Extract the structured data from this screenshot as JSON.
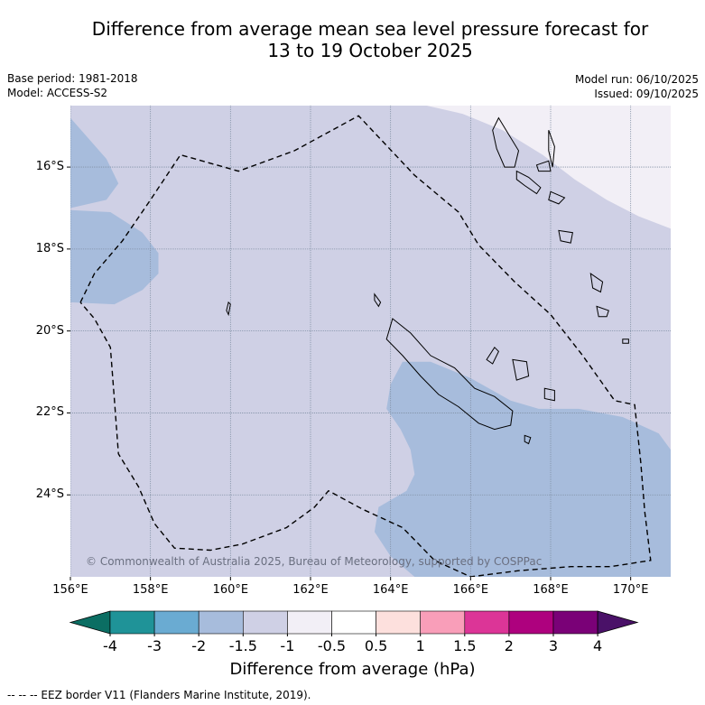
{
  "title": {
    "line1": "Difference from average mean sea level pressure forecast for",
    "line2": "13 to 19 October 2025"
  },
  "meta": {
    "base_period": "Base period: 1981-2018",
    "model": "Model: ACCESS-S2",
    "model_run": "Model run: 06/10/2025",
    "issued": "Issued: 09/10/2025"
  },
  "map": {
    "extent": {
      "lon_min": 156,
      "lon_max": 171,
      "lat_min": -26.0,
      "lat_max": -14.5
    },
    "lat_labels": [
      {
        "lat": -16,
        "label": "16°S"
      },
      {
        "lat": -18,
        "label": "18°S"
      },
      {
        "lat": -20,
        "label": "20°S"
      },
      {
        "lat": -22,
        "label": "22°S"
      },
      {
        "lat": -24,
        "label": "24°S"
      }
    ],
    "lon_labels": [
      {
        "lon": 156,
        "label": "156°E"
      },
      {
        "lon": 158,
        "label": "158°E"
      },
      {
        "lon": 160,
        "label": "160°E"
      },
      {
        "lon": 162,
        "label": "162°E"
      },
      {
        "lon": 164,
        "label": "164°E"
      },
      {
        "lon": 166,
        "label": "166°E"
      },
      {
        "lon": 168,
        "label": "168°E"
      },
      {
        "lon": 170,
        "label": "170°E"
      }
    ],
    "copyright": "© Commonwealth of Australia 2025, Bureau of Meteorology, supported by COSPPac",
    "base_class": "-1.5 to -1",
    "regions": [
      {
        "name": "west-low",
        "class": "-2 to -1.5",
        "color": "#a7bcdc",
        "lonlat": [
          [
            156,
            -14.8
          ],
          [
            156.9,
            -15.8
          ],
          [
            157.2,
            -16.4
          ],
          [
            156.9,
            -16.8
          ],
          [
            156,
            -17.0
          ],
          [
            156,
            -17.05
          ],
          [
            157.0,
            -17.1
          ],
          [
            157.8,
            -17.6
          ],
          [
            158.2,
            -18.1
          ],
          [
            158.2,
            -18.6
          ],
          [
            157.8,
            -19.0
          ],
          [
            157.1,
            -19.35
          ],
          [
            156,
            -19.3
          ],
          [
            156,
            -14.8
          ]
        ]
      },
      {
        "name": "southeast-low",
        "class": "-2 to -1.5",
        "color": "#a7bcdc",
        "lonlat": [
          [
            171,
            -22.9
          ],
          [
            170.7,
            -22.5
          ],
          [
            169.8,
            -22.1
          ],
          [
            168.7,
            -21.9
          ],
          [
            167.7,
            -21.9
          ],
          [
            167.0,
            -21.7
          ],
          [
            166.0,
            -21.15
          ],
          [
            165.0,
            -20.75
          ],
          [
            164.3,
            -20.75
          ],
          [
            164.0,
            -21.3
          ],
          [
            163.9,
            -21.9
          ],
          [
            164.25,
            -22.4
          ],
          [
            164.5,
            -22.9
          ],
          [
            164.6,
            -23.5
          ],
          [
            164.4,
            -23.9
          ],
          [
            163.7,
            -24.3
          ],
          [
            163.6,
            -24.9
          ],
          [
            164.0,
            -25.5
          ],
          [
            164.6,
            -26.0
          ],
          [
            171,
            -26.0
          ],
          [
            171,
            -22.9
          ]
        ]
      },
      {
        "name": "northeast-high",
        "class": "-1 to -0.5",
        "color": "#f2eff6",
        "lonlat": [
          [
            164.9,
            -14.5
          ],
          [
            165.8,
            -14.7
          ],
          [
            166.8,
            -15.1
          ],
          [
            167.8,
            -15.7
          ],
          [
            168.6,
            -16.3
          ],
          [
            169.4,
            -16.8
          ],
          [
            170.2,
            -17.2
          ],
          [
            171,
            -17.5
          ],
          [
            171,
            -14.5
          ],
          [
            164.9,
            -14.5
          ]
        ]
      }
    ],
    "eez_border": [
      [
        156.25,
        -19.3
      ],
      [
        156.6,
        -18.6
      ],
      [
        157.3,
        -17.8
      ],
      [
        158.0,
        -16.8
      ],
      [
        158.75,
        -15.7
      ],
      [
        160.2,
        -16.1
      ],
      [
        161.6,
        -15.6
      ],
      [
        163.2,
        -14.75
      ],
      [
        164.6,
        -16.2
      ],
      [
        165.7,
        -17.1
      ],
      [
        166.2,
        -17.9
      ],
      [
        167.1,
        -18.8
      ],
      [
        168.0,
        -19.6
      ],
      [
        168.8,
        -20.6
      ],
      [
        169.6,
        -21.7
      ],
      [
        170.1,
        -21.8
      ],
      [
        170.25,
        -23.2
      ],
      [
        170.35,
        -24.4
      ],
      [
        170.5,
        -25.6
      ],
      [
        169.5,
        -25.75
      ],
      [
        168.5,
        -25.75
      ],
      [
        167.2,
        -25.85
      ],
      [
        166.0,
        -26.0
      ],
      [
        165.1,
        -25.6
      ],
      [
        164.3,
        -24.8
      ],
      [
        163.3,
        -24.35
      ],
      [
        162.45,
        -23.9
      ],
      [
        162.1,
        -24.3
      ],
      [
        161.4,
        -24.8
      ],
      [
        160.3,
        -25.2
      ],
      [
        159.5,
        -25.35
      ],
      [
        158.6,
        -25.3
      ],
      [
        158.1,
        -24.7
      ],
      [
        157.7,
        -23.8
      ],
      [
        157.2,
        -23.0
      ],
      [
        157.1,
        -21.7
      ],
      [
        157.0,
        -20.4
      ],
      [
        156.6,
        -19.7
      ],
      [
        156.25,
        -19.3
      ]
    ],
    "coastlines": [
      [
        [
          164.05,
          -19.7
        ],
        [
          164.5,
          -20.05
        ],
        [
          165.0,
          -20.6
        ],
        [
          165.6,
          -20.9
        ],
        [
          166.1,
          -21.4
        ],
        [
          166.6,
          -21.6
        ],
        [
          167.05,
          -21.95
        ],
        [
          167.0,
          -22.3
        ],
        [
          166.6,
          -22.4
        ],
        [
          166.2,
          -22.25
        ],
        [
          165.7,
          -21.85
        ],
        [
          165.2,
          -21.55
        ],
        [
          164.75,
          -21.1
        ],
        [
          164.3,
          -20.6
        ],
        [
          163.9,
          -20.2
        ],
        [
          164.05,
          -19.7
        ]
      ],
      [
        [
          166.7,
          -14.8
        ],
        [
          166.95,
          -15.2
        ],
        [
          167.2,
          -15.6
        ],
        [
          167.1,
          -16.0
        ],
        [
          166.85,
          -16.0
        ],
        [
          166.65,
          -15.55
        ],
        [
          166.55,
          -15.1
        ],
        [
          166.7,
          -14.8
        ]
      ],
      [
        [
          167.95,
          -15.1
        ],
        [
          168.1,
          -15.5
        ],
        [
          168.05,
          -16.0
        ],
        [
          167.95,
          -15.6
        ],
        [
          167.95,
          -15.1
        ]
      ],
      [
        [
          167.65,
          -15.95
        ],
        [
          167.95,
          -15.85
        ],
        [
          168.0,
          -16.1
        ],
        [
          167.7,
          -16.1
        ],
        [
          167.65,
          -15.95
        ]
      ],
      [
        [
          167.15,
          -16.1
        ],
        [
          167.45,
          -16.25
        ],
        [
          167.75,
          -16.5
        ],
        [
          167.65,
          -16.65
        ],
        [
          167.35,
          -16.45
        ],
        [
          167.15,
          -16.3
        ],
        [
          167.15,
          -16.1
        ]
      ],
      [
        [
          168.0,
          -16.6
        ],
        [
          168.35,
          -16.75
        ],
        [
          168.2,
          -16.9
        ],
        [
          167.95,
          -16.8
        ],
        [
          168.0,
          -16.6
        ]
      ],
      [
        [
          168.2,
          -17.55
        ],
        [
          168.55,
          -17.6
        ],
        [
          168.5,
          -17.85
        ],
        [
          168.25,
          -17.8
        ],
        [
          168.2,
          -17.55
        ]
      ],
      [
        [
          169.0,
          -18.6
        ],
        [
          169.3,
          -18.8
        ],
        [
          169.25,
          -19.05
        ],
        [
          169.05,
          -18.95
        ],
        [
          169.0,
          -18.6
        ]
      ],
      [
        [
          169.15,
          -19.4
        ],
        [
          169.45,
          -19.5
        ],
        [
          169.4,
          -19.65
        ],
        [
          169.2,
          -19.65
        ],
        [
          169.15,
          -19.4
        ]
      ],
      [
        [
          169.8,
          -20.2
        ],
        [
          169.95,
          -20.2
        ],
        [
          169.95,
          -20.3
        ],
        [
          169.8,
          -20.3
        ],
        [
          169.8,
          -20.2
        ]
      ],
      [
        [
          166.6,
          -20.4
        ],
        [
          166.7,
          -20.5
        ],
        [
          166.55,
          -20.8
        ],
        [
          166.4,
          -20.7
        ],
        [
          166.6,
          -20.4
        ]
      ],
      [
        [
          167.05,
          -20.7
        ],
        [
          167.4,
          -20.75
        ],
        [
          167.45,
          -21.1
        ],
        [
          167.15,
          -21.2
        ],
        [
          167.05,
          -20.7
        ]
      ],
      [
        [
          167.85,
          -21.4
        ],
        [
          168.1,
          -21.45
        ],
        [
          168.1,
          -21.7
        ],
        [
          167.85,
          -21.65
        ],
        [
          167.85,
          -21.4
        ]
      ],
      [
        [
          167.35,
          -22.55
        ],
        [
          167.5,
          -22.6
        ],
        [
          167.45,
          -22.75
        ],
        [
          167.35,
          -22.7
        ],
        [
          167.35,
          -22.55
        ]
      ],
      [
        [
          159.95,
          -19.3
        ],
        [
          160.0,
          -19.35
        ],
        [
          159.95,
          -19.6
        ],
        [
          159.9,
          -19.5
        ],
        [
          159.95,
          -19.3
        ]
      ],
      [
        [
          163.6,
          -19.1
        ],
        [
          163.75,
          -19.3
        ],
        [
          163.7,
          -19.4
        ],
        [
          163.6,
          -19.25
        ],
        [
          163.6,
          -19.1
        ]
      ]
    ]
  },
  "colorbar": {
    "label": "Difference from average (hPa)",
    "ticks": [
      "-4",
      "-3",
      "-2",
      "-1.5",
      "-1",
      "-0.5",
      "0.5",
      "1",
      "1.5",
      "2",
      "3",
      "4"
    ],
    "under_color": "#0b6e63",
    "over_color": "#4a1168",
    "colors": [
      "#1f9398",
      "#6aabd2",
      "#a7bcdc",
      "#cfd0e5",
      "#f2eff6",
      "#ffffff",
      "#fde0dd",
      "#f99eb9",
      "#dc3597",
      "#ae017e",
      "#7a0177"
    ]
  },
  "footer": "--  --  -- EEZ border V11 (Flanders Marine Institute, 2019)."
}
